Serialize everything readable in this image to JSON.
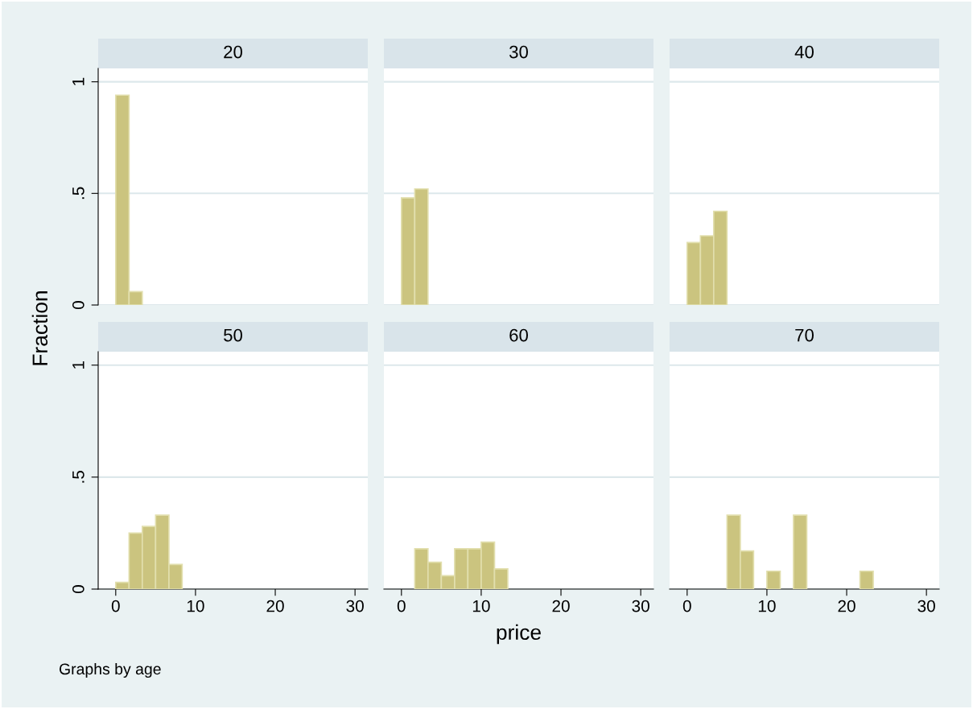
{
  "chart_data": [
    {
      "type": "histogram",
      "title": "20",
      "ylabel": "Fraction",
      "bins": [
        0,
        1.67,
        3.33
      ],
      "values": [
        0.94,
        0.06
      ],
      "color": "#cbc47f",
      "xlim": [
        -2.2,
        31.6
      ],
      "ylim": [
        0,
        1.06
      ],
      "xticks": [
        0,
        10,
        20,
        30
      ],
      "yticks": [
        0,
        {
          "value": 0.5,
          "label": ".5"
        },
        1
      ],
      "grid": "y",
      "tick_labels": "y"
    },
    {
      "type": "histogram",
      "title": "30",
      "bins": [
        0,
        1.67,
        3.33
      ],
      "values": [
        0.48,
        0.52
      ],
      "color": "#cbc47f",
      "xlim": [
        -2.2,
        31.6
      ],
      "ylim": [
        0,
        1.06
      ],
      "xticks": [
        0,
        10,
        20,
        30
      ],
      "yticks": [
        {
          "value": 0,
          "label": null
        },
        {
          "value": 0.5,
          "label": null
        },
        {
          "value": 1,
          "label": null
        }
      ],
      "grid": "y",
      "tick_labels": false
    },
    {
      "type": "histogram",
      "title": "40",
      "bins": [
        0,
        1.67,
        3.33,
        5
      ],
      "values": [
        0.28,
        0.31,
        0.42
      ],
      "color": "#cbc47f",
      "xlim": [
        -2.2,
        31.6
      ],
      "ylim": [
        0,
        1.06
      ],
      "xticks": [
        0,
        10,
        20,
        30
      ],
      "yticks": [
        {
          "value": 0,
          "label": null
        },
        {
          "value": 0.5,
          "label": null
        },
        {
          "value": 1,
          "label": null
        }
      ],
      "grid": "y",
      "tick_labels": false
    },
    {
      "type": "histogram",
      "title": "50",
      "annotations": [
        "Graphs by age"
      ],
      "bins": [
        0,
        1.67,
        3.33,
        5,
        6.67,
        8.33
      ],
      "values": [
        0.03,
        0.25,
        0.28,
        0.33,
        0.11
      ],
      "color": "#cbc47f",
      "xlim": [
        -2.2,
        31.6
      ],
      "ylim": [
        0,
        1.06
      ],
      "xticks": [
        0,
        10,
        20,
        30
      ],
      "yticks": [
        0,
        {
          "value": 0.5,
          "label": ".5"
        },
        1
      ],
      "grid": "y"
    },
    {
      "type": "histogram",
      "title": "60",
      "xlabel": "price",
      "bins": [
        1.67,
        3.33,
        5,
        6.67,
        8.33,
        10,
        11.67,
        13.33
      ],
      "values": [
        0.18,
        0.12,
        0.06,
        0.18,
        0.18,
        0.21,
        0.09
      ],
      "color": "#cbc47f",
      "xlim": [
        -2.2,
        31.6
      ],
      "ylim": [
        0,
        1.06
      ],
      "xticks": [
        0,
        10,
        20,
        30
      ],
      "yticks": [
        {
          "value": 0,
          "label": null
        },
        {
          "value": 0.5,
          "label": null
        },
        {
          "value": 1,
          "label": null
        }
      ],
      "grid": "y",
      "tick_labels": "x"
    },
    {
      "type": "histogram",
      "title": "70",
      "bins": [
        5,
        6.67,
        8.33,
        10,
        11.67,
        13.33,
        15,
        16.67,
        18.33,
        20,
        21.67,
        23.33
      ],
      "values": [
        0.33,
        0.17,
        0,
        0.08,
        0,
        0.33,
        0,
        0,
        0,
        0,
        0.08
      ],
      "color": "#cbc47f",
      "xlim": [
        -2.2,
        31.6
      ],
      "ylim": [
        0,
        1.06
      ],
      "xticks": [
        0,
        10,
        20,
        30
      ],
      "yticks": [
        {
          "value": 0,
          "label": null
        },
        {
          "value": 0.5,
          "label": null
        },
        {
          "value": 1,
          "label": null
        }
      ],
      "grid": "y",
      "tick_labels": "x"
    }
  ]
}
